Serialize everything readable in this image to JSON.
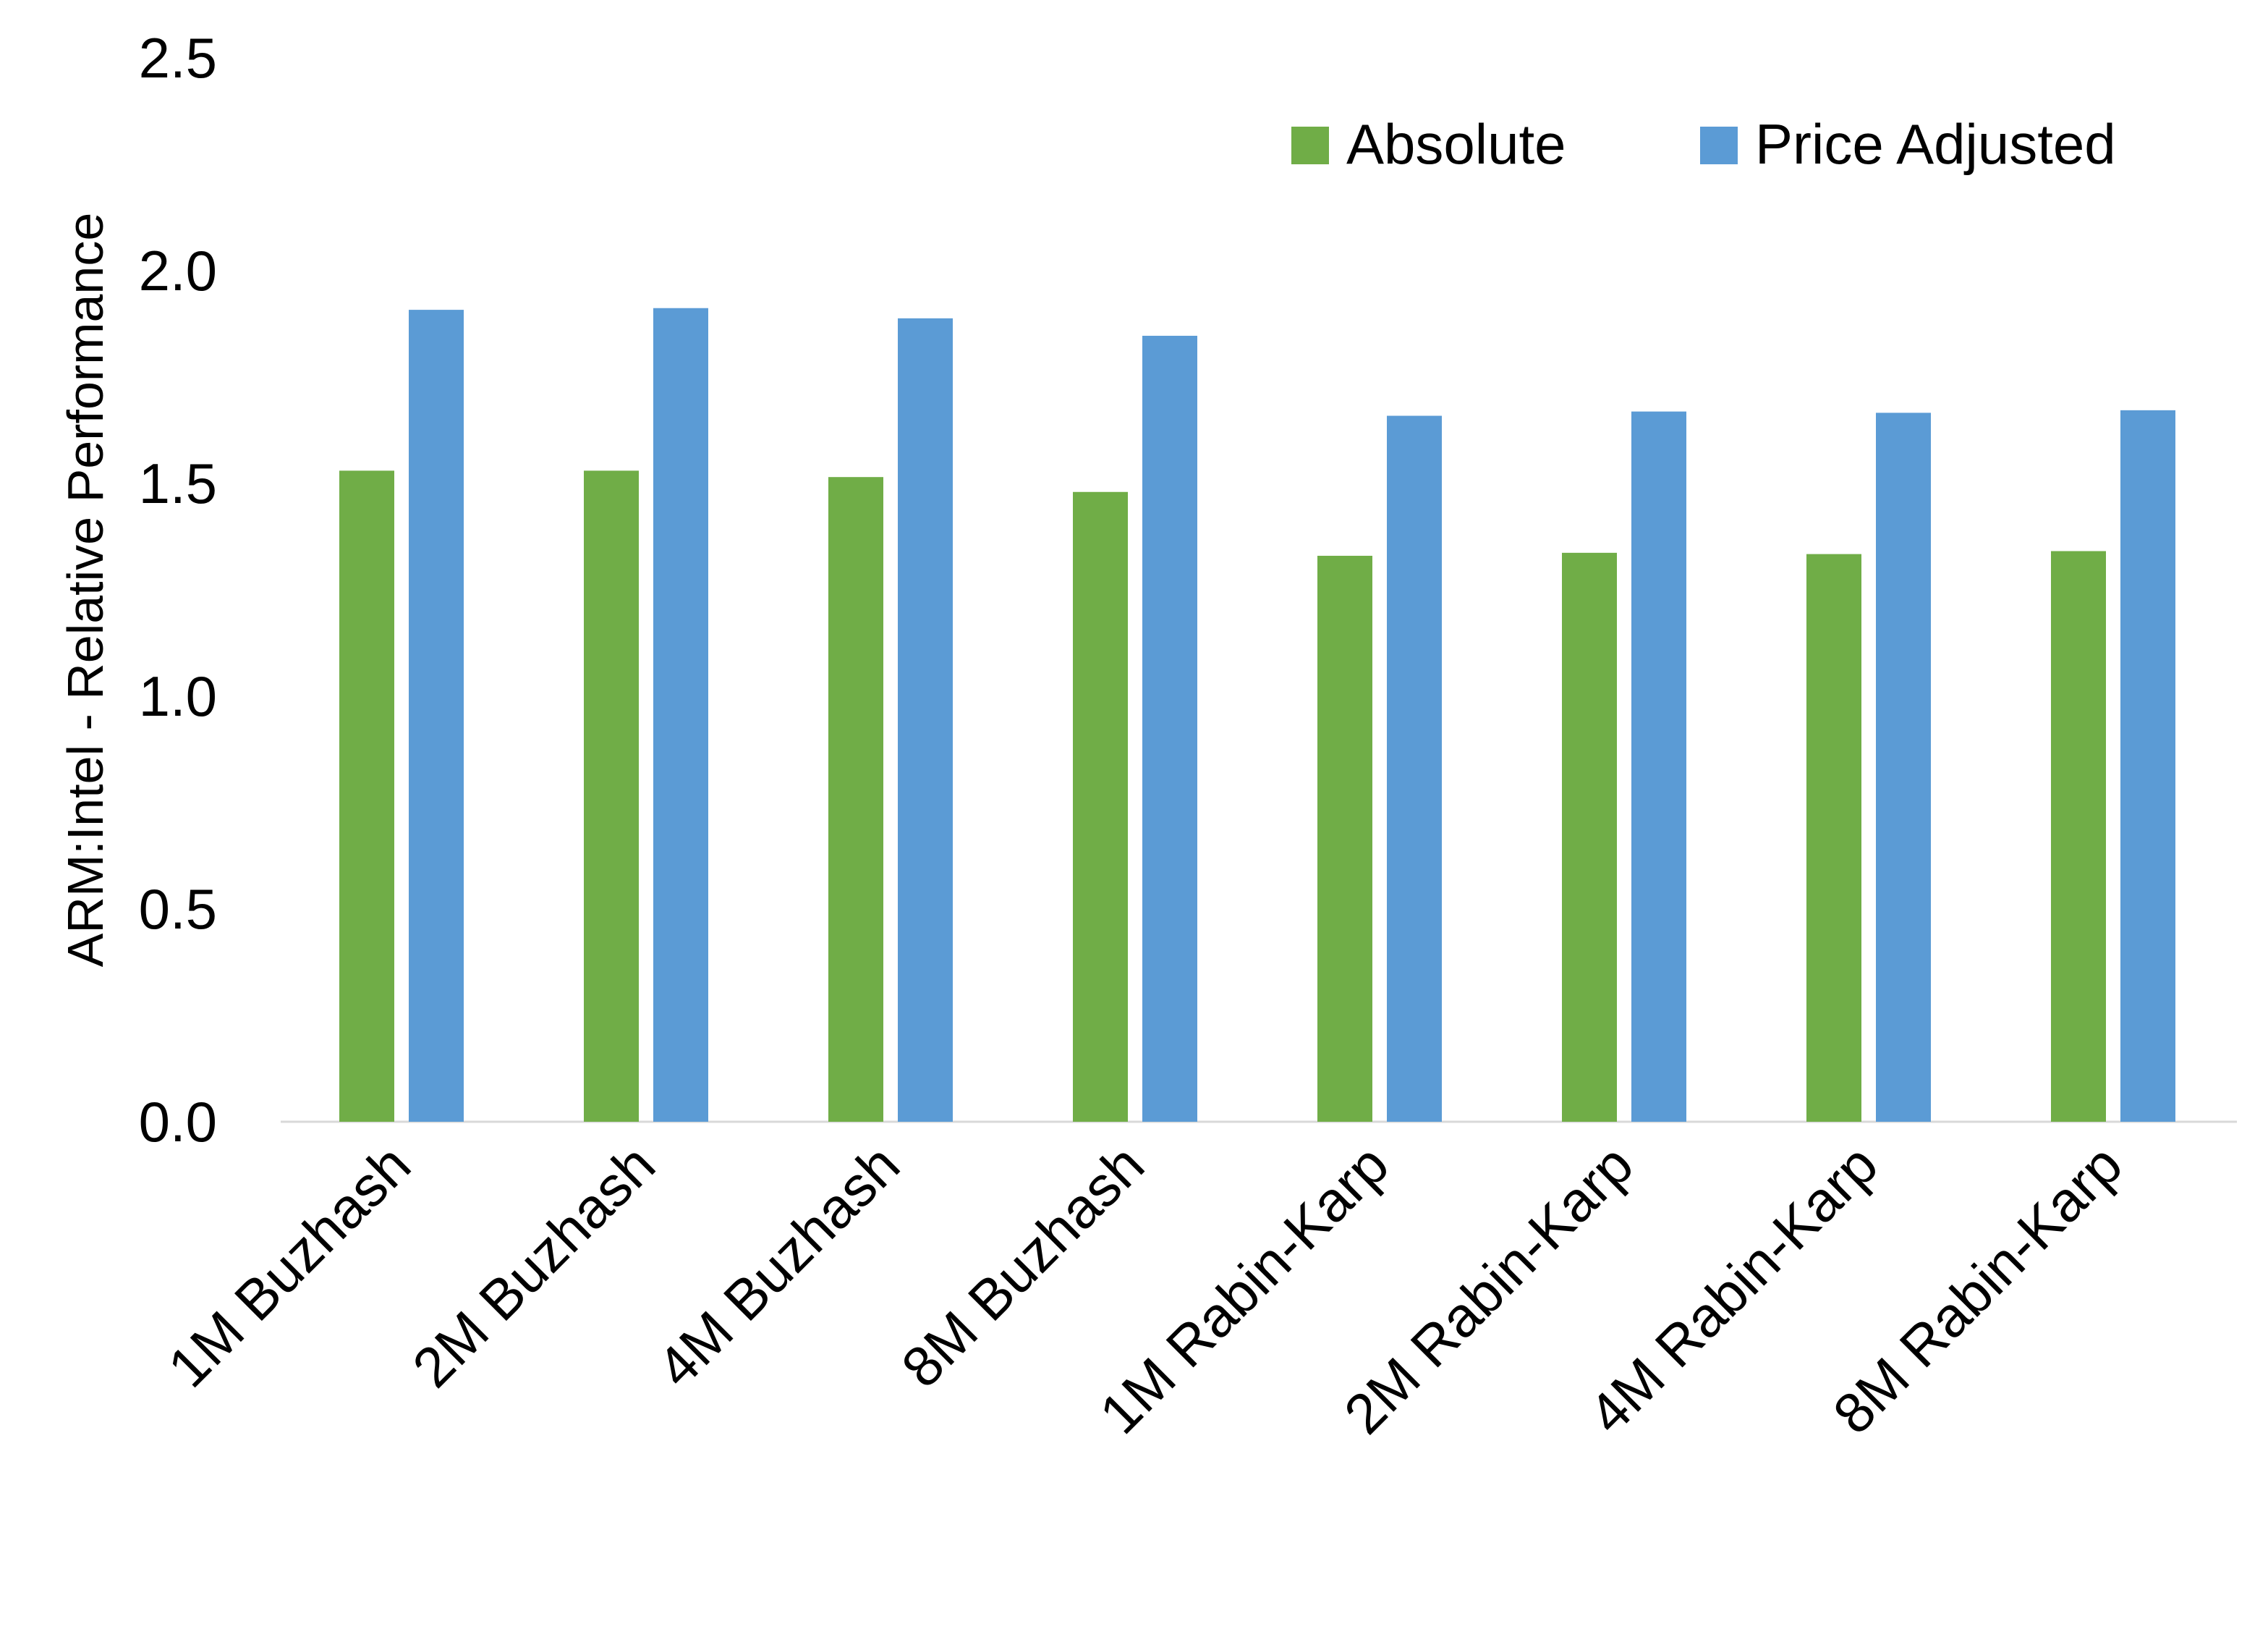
{
  "chart_data": {
    "type": "bar",
    "title": "",
    "xlabel": "",
    "ylabel": "ARM:Intel - Relative Performance",
    "ylim": [
      0,
      2.5
    ],
    "yticks": [
      "0.0",
      "0.5",
      "1.0",
      "1.5",
      "2.0",
      "2.5"
    ],
    "grid": false,
    "legend_position": "top-right",
    "categories": [
      "1M Buzhash",
      "2M Buzhash",
      "4M Buzhash",
      "8M Buzhash",
      "1M Rabin-Karp",
      "2M Rabin-Karp",
      "4M Rabin-Karp",
      "8M Rabin-Karp"
    ],
    "series": [
      {
        "name": "Absolute",
        "color": "#70AD47",
        "values": [
          1.53,
          1.53,
          1.515,
          1.48,
          1.33,
          1.337,
          1.334,
          1.341
        ]
      },
      {
        "name": "Price Adjusted",
        "color": "#5B9BD5",
        "values": [
          1.908,
          1.912,
          1.888,
          1.847,
          1.659,
          1.669,
          1.666,
          1.672
        ]
      }
    ]
  }
}
